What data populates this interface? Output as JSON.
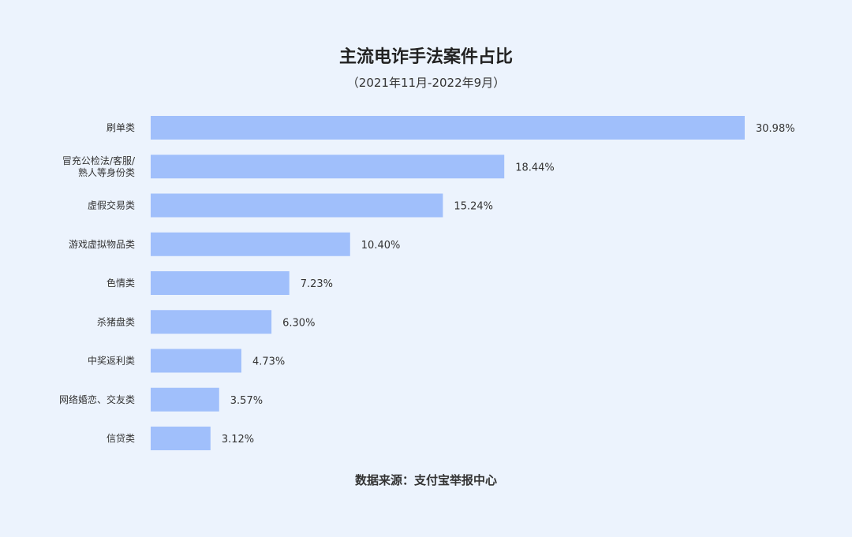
{
  "chart_data": {
    "type": "bar",
    "orientation": "horizontal",
    "title": "主流电诈手法案件占比",
    "subtitle": "（2021年11月-2022年9月）",
    "categories": [
      [
        "刷单类"
      ],
      [
        "冒充公检法/客服/",
        "熟人等身份类"
      ],
      [
        "虚假交易类"
      ],
      [
        "游戏虚拟物品类"
      ],
      [
        "色情类"
      ],
      [
        "杀猪盘类"
      ],
      [
        "中奖返利类"
      ],
      [
        "网络婚恋、交友类"
      ],
      [
        "信贷类"
      ]
    ],
    "values": [
      30.98,
      18.44,
      15.24,
      10.4,
      7.23,
      6.3,
      4.73,
      3.57,
      3.12
    ],
    "value_labels": [
      "30.98%",
      "18.44%",
      "15.24%",
      "10.40%",
      "7.23%",
      "6.30%",
      "4.73%",
      "3.57%",
      "3.12%"
    ],
    "unit": "%",
    "xlim": [
      0,
      30.98
    ],
    "grid": false,
    "legend": "none",
    "source": "数据来源：支付宝举报中心",
    "colors": {
      "background": "#ECF3FD",
      "bar": "#A0BFFB"
    }
  }
}
